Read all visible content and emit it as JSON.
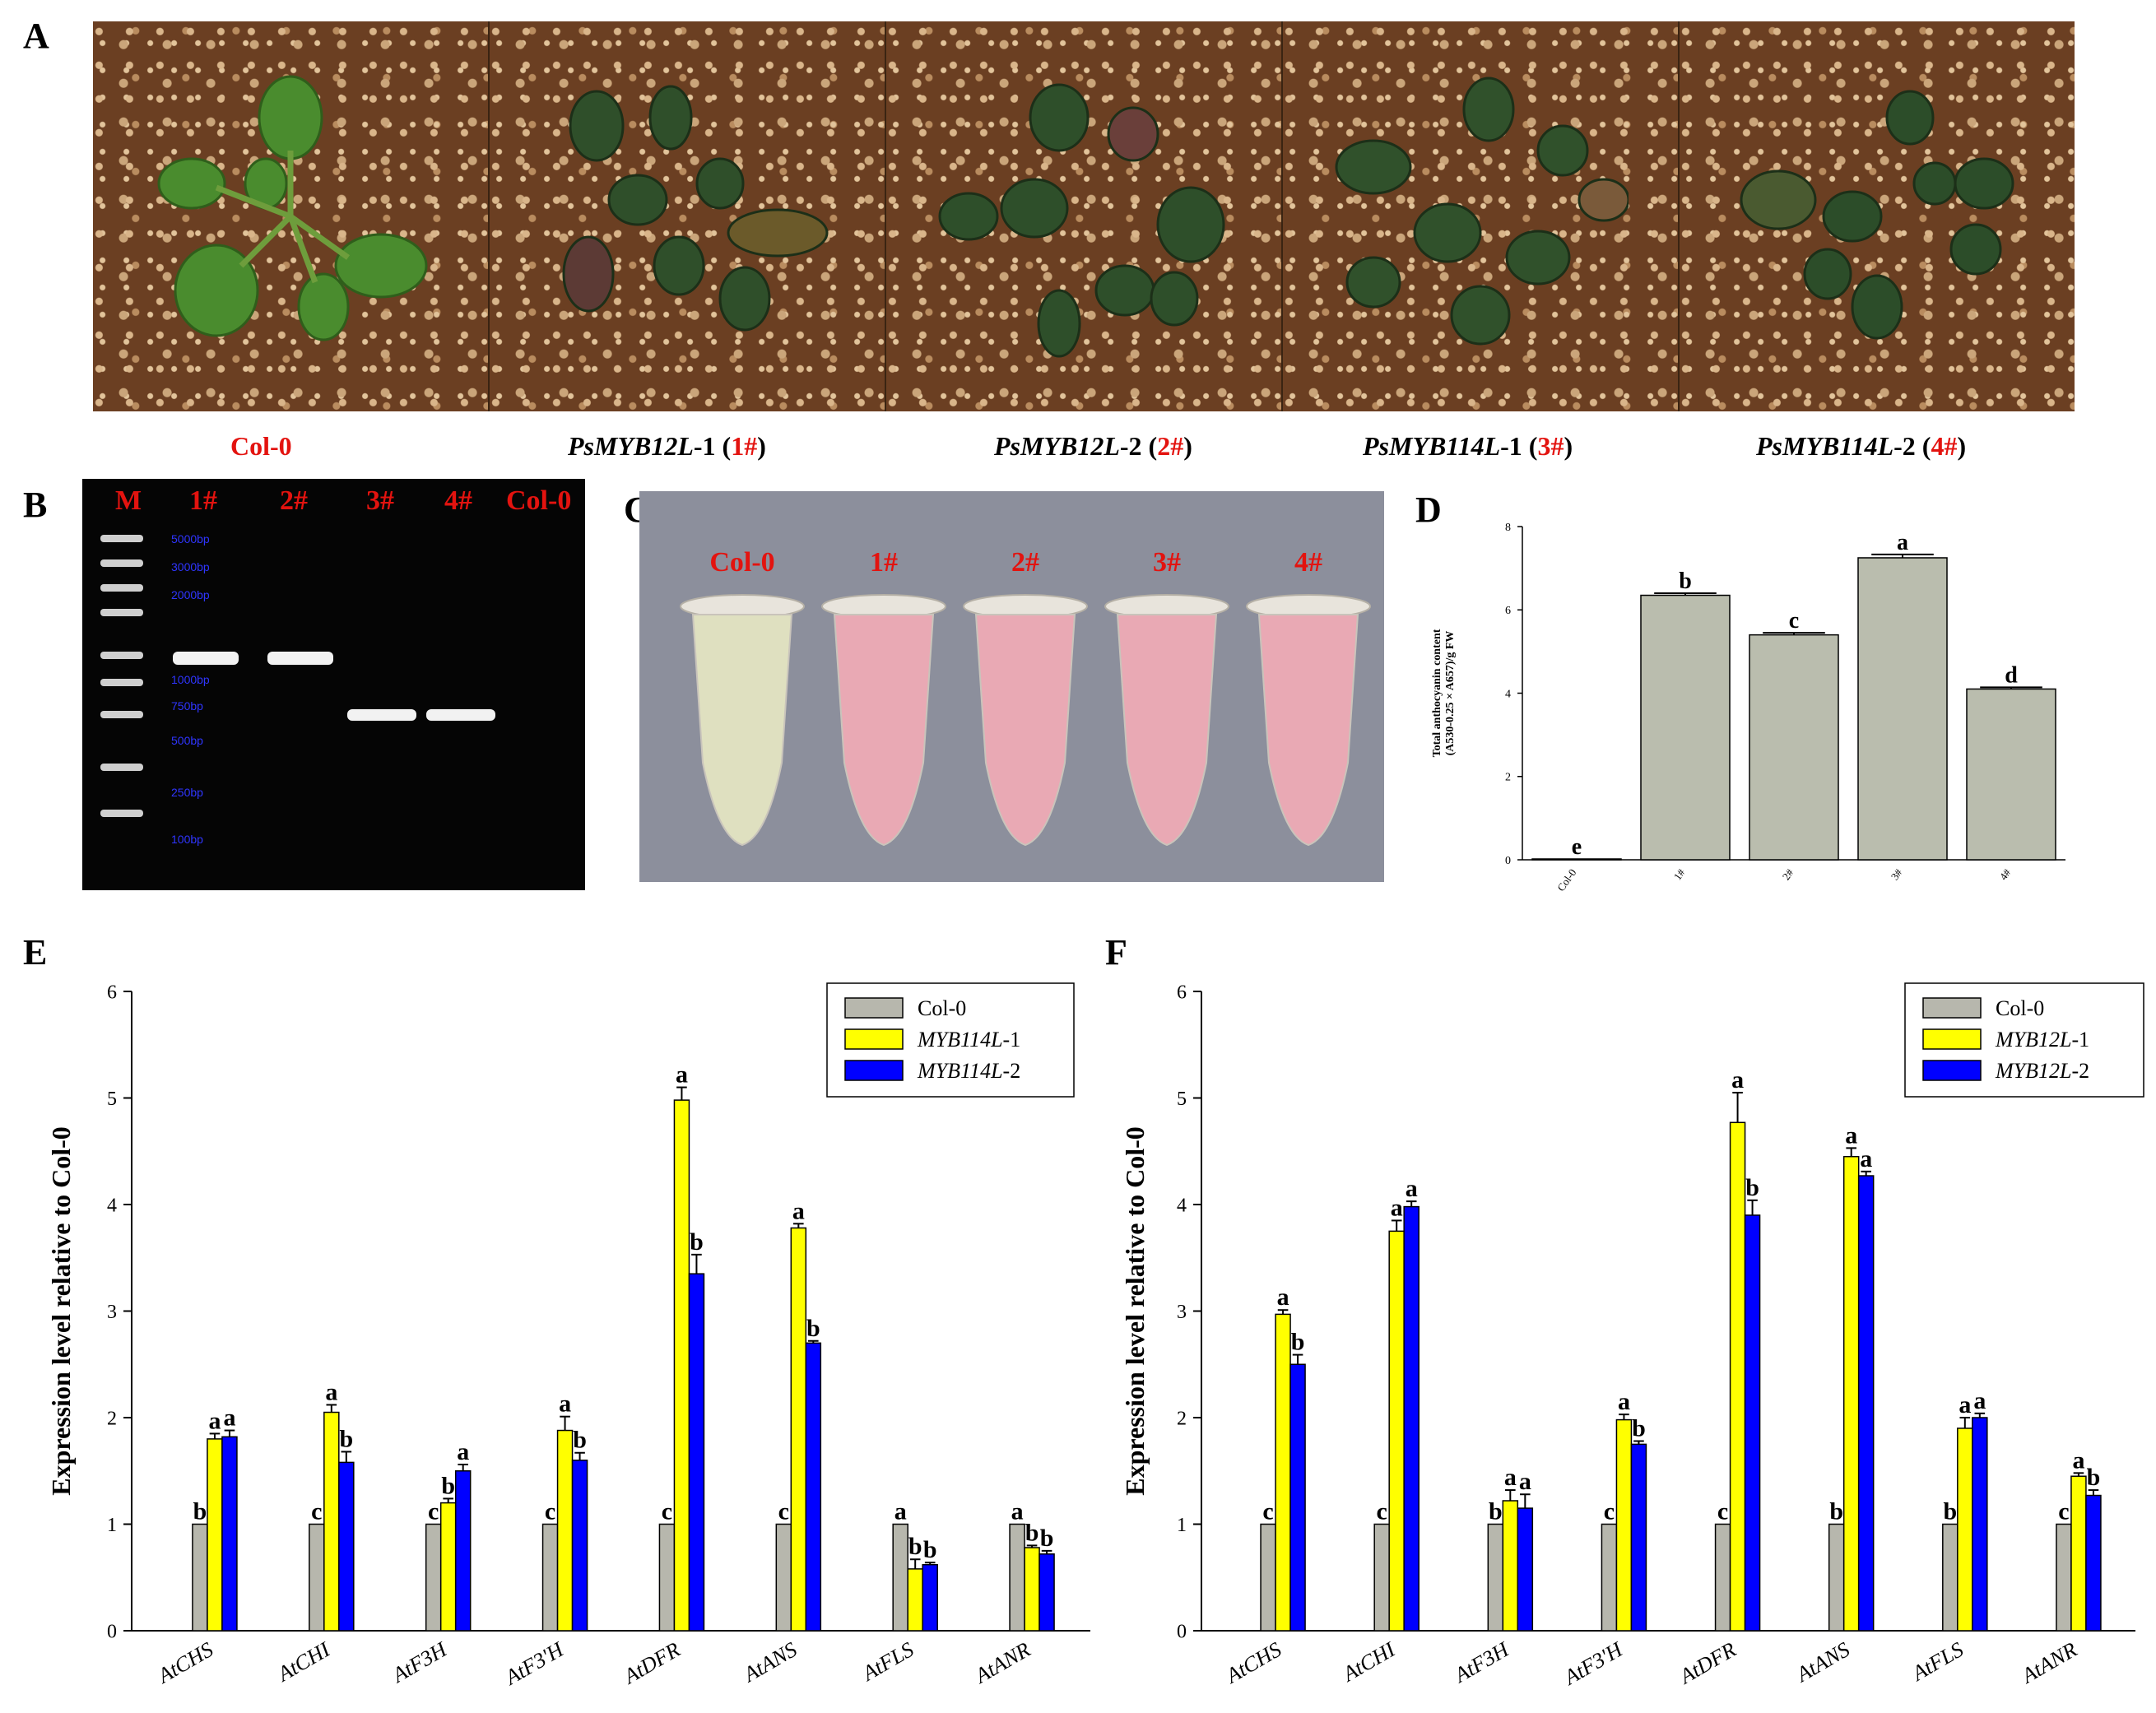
{
  "panels": {
    "A": "A",
    "B": "B",
    "C": "C",
    "D": "D",
    "E": "E",
    "F": "F"
  },
  "panelA": {
    "labels": [
      {
        "main": "Col-0",
        "sub": "",
        "code": "",
        "tail": ""
      },
      {
        "main": "PsMYB12L",
        "sub": "-1  (",
        "code": "1#",
        "tail": ")"
      },
      {
        "main": "PsMYB12L",
        "sub": "-2  (",
        "code": "2#",
        "tail": ")"
      },
      {
        "main": "PsMYB114L",
        "sub": "-1 (",
        "code": "3#",
        "tail": ")"
      },
      {
        "main": "PsMYB114L",
        "sub": "-2 (",
        "code": "4#",
        "tail": ")"
      }
    ]
  },
  "panelB": {
    "lanes": [
      "M",
      "1#",
      "2#",
      "3#",
      "4#",
      "Col-0"
    ],
    "ladder": [
      "5000bp",
      "3000bp",
      "2000bp",
      "1000bp",
      "750bp",
      "500bp",
      "250bp",
      "100bp"
    ]
  },
  "panelC": {
    "tubes": [
      "Col-0",
      "1#",
      "2#",
      "3#",
      "4#"
    ],
    "colors": {
      "control": "#dfe0c0",
      "transgenic": "#e9a9b4"
    }
  },
  "chart_data": [
    {
      "id": "D",
      "type": "bar",
      "categories": [
        "Col-0",
        "1#",
        "2#",
        "3#",
        "4#"
      ],
      "values": [
        0.02,
        6.35,
        5.4,
        7.25,
        4.1
      ],
      "errors": [
        0,
        0.05,
        0.05,
        0.08,
        0.04
      ],
      "letters": [
        "e",
        "b",
        "c",
        "a",
        "d"
      ],
      "ylabel": "Total anthocyanin content\n(A530-0.25 × A657)/g FW",
      "ylim": [
        0,
        8
      ],
      "yticks": [
        0,
        2,
        4,
        6,
        8
      ],
      "color": "#babdae"
    },
    {
      "id": "E",
      "type": "bar",
      "categories": [
        "AtCHS",
        "AtCHI",
        "AtF3H",
        "AtF3'H",
        "AtDFR",
        "AtANS",
        "AtFLS",
        "AtANR"
      ],
      "series": [
        {
          "name": "Col-0",
          "color": "#b7b7ad",
          "values": [
            1,
            1,
            1,
            1,
            1,
            1,
            1,
            1
          ],
          "errors": [
            0,
            0,
            0,
            0,
            0,
            0,
            0,
            0
          ],
          "letters": [
            "b",
            "c",
            "c",
            "c",
            "c",
            "c",
            "a",
            "a"
          ]
        },
        {
          "name": "MYB114L-1",
          "color": "#ffff00",
          "values": [
            1.8,
            2.05,
            1.2,
            1.88,
            4.98,
            3.78,
            0.58,
            0.78
          ],
          "errors": [
            0.05,
            0.07,
            0.04,
            0.13,
            0.12,
            0.04,
            0.09,
            0.02
          ],
          "letters": [
            "a",
            "a",
            "b",
            "a",
            "a",
            "a",
            "b",
            "b"
          ]
        },
        {
          "name": "MYB114L-2",
          "color": "#0000ff",
          "values": [
            1.82,
            1.58,
            1.5,
            1.6,
            3.35,
            2.7,
            0.62,
            0.72
          ],
          "errors": [
            0.06,
            0.1,
            0.06,
            0.07,
            0.18,
            0.02,
            0.02,
            0.03
          ],
          "letters": [
            "a",
            "b",
            "a",
            "b",
            "b",
            "b",
            "b",
            "b"
          ]
        }
      ],
      "ylabel": "Expression level relative to Col-0",
      "ylim": [
        0,
        6
      ],
      "yticks": [
        0,
        1,
        2,
        3,
        4,
        5,
        6
      ],
      "legend": "top-right"
    },
    {
      "id": "F",
      "type": "bar",
      "categories": [
        "AtCHS",
        "AtCHI",
        "AtF3H",
        "AtF3'H",
        "AtDFR",
        "AtANS",
        "AtFLS",
        "AtANR"
      ],
      "series": [
        {
          "name": "Col-0",
          "color": "#b7b7ad",
          "values": [
            1,
            1,
            1,
            1,
            1,
            1,
            1,
            1
          ],
          "errors": [
            0,
            0,
            0,
            0,
            0,
            0,
            0,
            0
          ],
          "letters": [
            "c",
            "c",
            "b",
            "c",
            "c",
            "b",
            "b",
            "c"
          ]
        },
        {
          "name": "MYB12L-1",
          "color": "#ffff00",
          "values": [
            2.97,
            3.75,
            1.22,
            1.98,
            4.77,
            4.45,
            1.9,
            1.45
          ],
          "errors": [
            0.04,
            0.1,
            0.1,
            0.05,
            0.28,
            0.08,
            0.1,
            0.03
          ],
          "letters": [
            "a",
            "a",
            "a",
            "a",
            "a",
            "a",
            "a",
            "a"
          ]
        },
        {
          "name": "MYB12L-2",
          "color": "#0000ff",
          "values": [
            2.5,
            3.98,
            1.15,
            1.75,
            3.9,
            4.27,
            2.0,
            1.27
          ],
          "errors": [
            0.09,
            0.05,
            0.13,
            0.03,
            0.14,
            0.04,
            0.04,
            0.05
          ],
          "letters": [
            "b",
            "a",
            "a",
            "b",
            "b",
            "a",
            "a",
            "b"
          ]
        }
      ],
      "ylabel": "Expression level relative to Col-0",
      "ylim": [
        0,
        6
      ],
      "yticks": [
        0,
        1,
        2,
        3,
        4,
        5,
        6
      ],
      "legend": "top-right"
    }
  ]
}
